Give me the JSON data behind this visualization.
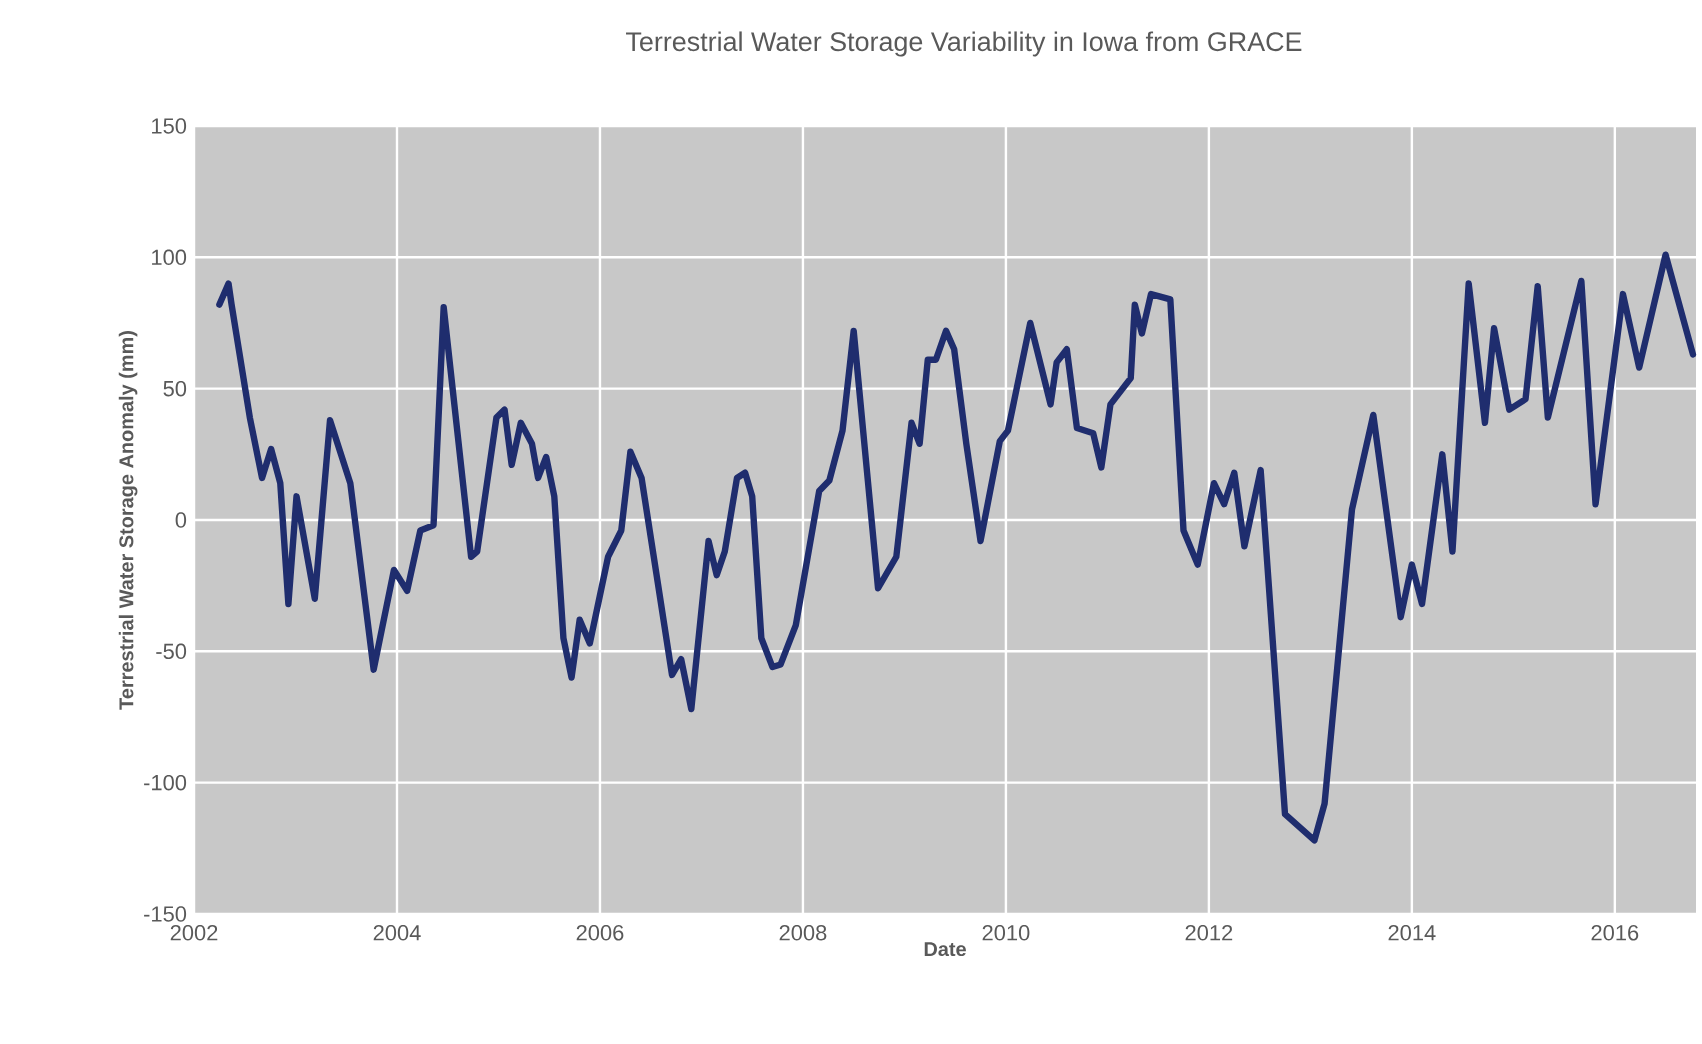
{
  "chart_data": {
    "type": "line",
    "title": "Terrestrial Water Storage Variability in Iowa from GRACE",
    "xlabel": "Date",
    "ylabel": "Terrestrial Water Storage Anomaly (mm)",
    "xlim": [
      2002,
      2016.8
    ],
    "xticks": [
      2002,
      2004,
      2006,
      2008,
      2010,
      2012,
      2014,
      2016
    ],
    "ylim": [
      -150,
      150
    ],
    "yticks": [
      -150,
      -100,
      -50,
      0,
      50,
      100,
      150
    ],
    "grid": true,
    "series": [
      {
        "color": "#1f2d6e",
        "x": [
          2002.25,
          2002.34,
          2002.37,
          2002.55,
          2002.67,
          2002.76,
          2002.85,
          2002.93,
          2003.01,
          2003.19,
          2003.34,
          2003.54,
          2003.77,
          2003.97,
          2004.1,
          2004.23,
          2004.36,
          2004.46,
          2004.73,
          2004.79,
          2004.98,
          2005.06,
          2005.13,
          2005.22,
          2005.33,
          2005.39,
          2005.47,
          2005.55,
          2005.64,
          2005.72,
          2005.8,
          2005.9,
          2006.08,
          2006.21,
          2006.3,
          2006.41,
          2006.57,
          2006.71,
          2006.8,
          2006.9,
          2007.07,
          2007.15,
          2007.23,
          2007.35,
          2007.43,
          2007.5,
          2007.59,
          2007.7,
          2007.78,
          2007.93,
          2008.16,
          2008.26,
          2008.39,
          2008.5,
          2008.74,
          2008.92,
          2009.07,
          2009.15,
          2009.23,
          2009.31,
          2009.41,
          2009.49,
          2009.61,
          2009.75,
          2009.94,
          2010.02,
          2010.24,
          2010.44,
          2010.5,
          2010.6,
          2010.7,
          2010.86,
          2010.94,
          2011.03,
          2011.23,
          2011.27,
          2011.34,
          2011.43,
          2011.62,
          2011.75,
          2011.89,
          2012.05,
          2012.15,
          2012.25,
          2012.35,
          2012.51,
          2012.75,
          2013.04,
          2013.14,
          2013.41,
          2013.62,
          2013.89,
          2014.0,
          2014.1,
          2014.3,
          2014.4,
          2014.56,
          2014.72,
          2014.81,
          2014.96,
          2015.12,
          2015.24,
          2015.34,
          2015.67,
          2015.81,
          2016.08,
          2016.24,
          2016.5,
          2016.77
        ],
        "values": [
          82,
          90,
          82,
          39,
          16,
          27,
          14,
          -32,
          9,
          -30,
          38,
          14,
          -57,
          -19,
          -27,
          -4,
          -2,
          81,
          -14,
          -12,
          39,
          42,
          21,
          37,
          29,
          16,
          24,
          9,
          -45,
          -60,
          -38,
          -47,
          -14,
          -4,
          26,
          16,
          -24,
          -59,
          -53,
          -72,
          -8,
          -21,
          -12,
          16,
          18,
          9,
          -45,
          -56,
          -55,
          -40,
          11,
          15,
          34,
          72,
          -26,
          -14,
          37,
          29,
          61,
          61,
          72,
          65,
          29,
          -8,
          30,
          34,
          75,
          44,
          60,
          65,
          35,
          33,
          20,
          44,
          54,
          82,
          71,
          86,
          84,
          -4,
          -17,
          14,
          6,
          18,
          -10,
          19,
          -112,
          -122,
          -108,
          4,
          40,
          -37,
          -17,
          -32,
          25,
          -12,
          90,
          37,
          73,
          42,
          46,
          89,
          39,
          91,
          6,
          86,
          58,
          101,
          63
        ]
      }
    ]
  }
}
